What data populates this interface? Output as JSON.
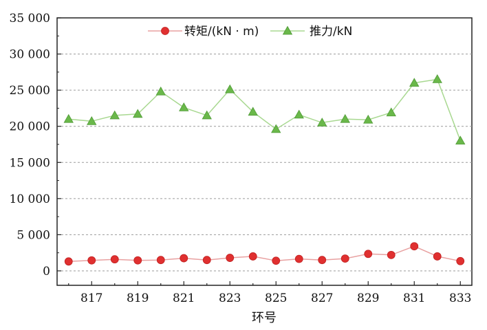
{
  "chart_data": {
    "type": "line",
    "title": "",
    "xlabel": "环号",
    "ylabel": "",
    "x": [
      816,
      817,
      818,
      819,
      820,
      821,
      822,
      823,
      824,
      825,
      826,
      827,
      828,
      829,
      830,
      831,
      832,
      833
    ],
    "x_tick_labels": [
      "817",
      "819",
      "821",
      "823",
      "825",
      "827",
      "829",
      "831",
      "833"
    ],
    "x_tick_values": [
      817,
      819,
      821,
      823,
      825,
      827,
      829,
      831,
      833
    ],
    "xlim": [
      815.5,
      833.5
    ],
    "ylim": [
      -2000,
      35000
    ],
    "y_tick_values": [
      0,
      5000,
      10000,
      15000,
      20000,
      25000,
      30000,
      35000
    ],
    "y_tick_labels": [
      "0",
      "5 000",
      "10 000",
      "15 000",
      "20 000",
      "25 000",
      "30 000",
      "35 000"
    ],
    "grid": "horizontal-dashed",
    "legend_position": "top-center",
    "series": [
      {
        "name": "转矩/(kN · m)",
        "color": "#e03030",
        "line_color": "#e8a0a0",
        "marker": "circle",
        "values": [
          1300,
          1450,
          1600,
          1450,
          1500,
          1750,
          1500,
          1800,
          2000,
          1400,
          1650,
          1500,
          1700,
          2350,
          2200,
          3400,
          2000,
          1350
        ]
      },
      {
        "name": "推力/kN",
        "color": "#6ab84a",
        "line_color": "#a8d890",
        "marker": "triangle",
        "values": [
          21000,
          20700,
          21500,
          21700,
          24800,
          22600,
          21500,
          25100,
          22000,
          19600,
          21600,
          20500,
          21000,
          20900,
          21900,
          26000,
          26500,
          18000
        ]
      }
    ]
  }
}
